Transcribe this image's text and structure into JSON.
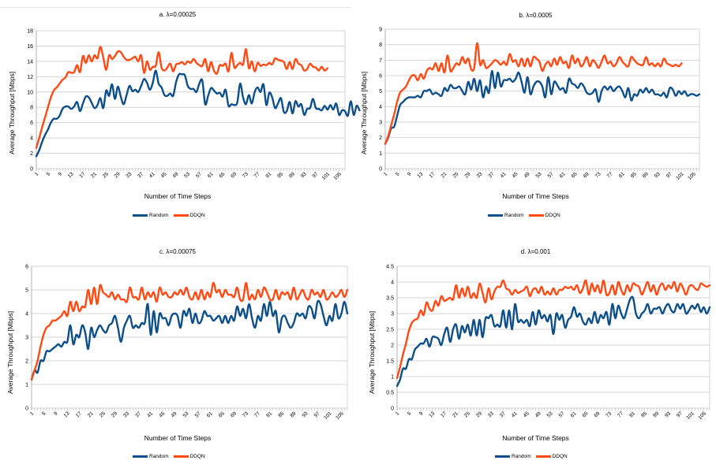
{
  "legend": {
    "items": [
      {
        "name": "Random",
        "color": "#0d4f8b"
      },
      {
        "name": "DDQN",
        "color": "#ff4a14"
      }
    ]
  },
  "chart_data": [
    {
      "type": "line",
      "title": "a. λ=0.00025",
      "xlabel": "Number of Time Steps",
      "ylabel": "Average Throughput [Mbps]",
      "ylim": [
        0,
        18
      ],
      "yticks": [
        0,
        2,
        4,
        6,
        8,
        10,
        12,
        14,
        16,
        18
      ],
      "x_range": [
        1,
        107
      ],
      "xtick_labels": [
        "1",
        "5",
        "9",
        "13",
        "17",
        "21",
        "25",
        "29",
        "33",
        "37",
        "41",
        "45",
        "49",
        "53",
        "57",
        "61",
        "65",
        "69",
        "73",
        "77",
        "81",
        "85",
        "89",
        "93",
        "97",
        "101",
        "105"
      ],
      "grid": true,
      "legend_position": "bottom",
      "series": [
        {
          "name": "Random",
          "color": "#0d4f8b",
          "values": [
            1.6,
            2.4,
            3.5,
            4.4,
            5.1,
            6.0,
            6.5,
            6.5,
            6.9,
            7.8,
            8.1,
            8.1,
            7.8,
            8.1,
            8.7,
            7.5,
            8.5,
            9.4,
            9.3,
            8.6,
            7.9,
            8.3,
            9.2,
            7.9,
            10.2,
            9.5,
            11.0,
            9.1,
            10.7,
            9.4,
            8.4,
            9.6,
            10.8,
            10.1,
            10.3,
            10.0,
            10.8,
            11.7,
            11.2,
            10.3,
            11.2,
            12.8,
            11.1,
            10.6,
            9.6,
            9.5,
            9.8,
            9.5,
            11.3,
            12.3,
            12.3,
            12.2,
            10.8,
            10.4,
            10.4,
            10.0,
            11.1,
            11.5,
            8.4,
            9.5,
            10.5,
            10.2,
            9.8,
            9.9,
            9.4,
            10.3,
            8.2,
            8.4,
            8.3,
            8.6,
            11.1,
            9.3,
            8.4,
            9.6,
            8.5,
            10.0,
            10.6,
            10.0,
            11.0,
            8.3,
            9.9,
            9.3,
            7.9,
            8.5,
            9.2,
            7.4,
            7.5,
            8.7,
            7.2,
            8.8,
            8.1,
            8.4,
            7.0,
            7.8,
            7.9,
            9.1,
            7.9,
            7.8,
            7.6,
            8.2,
            7.7,
            8.3,
            7.7,
            8.5,
            7.0,
            7.6,
            7.5,
            6.9,
            8.8,
            7.0,
            8.2,
            7.6
          ]
        },
        {
          "name": "DDQN",
          "color": "#ff4a14",
          "values": [
            2.7,
            4.0,
            5.4,
            6.7,
            8.0,
            9.3,
            10.2,
            10.6,
            11.1,
            11.6,
            11.9,
            12.6,
            12.5,
            12.6,
            13.5,
            12.6,
            14.7,
            13.8,
            14.8,
            14.0,
            14.8,
            14.4,
            15.9,
            14.5,
            12.9,
            14.8,
            14.3,
            14.7,
            15.3,
            15.2,
            14.6,
            14.2,
            14.2,
            14.4,
            14.6,
            14.0,
            14.8,
            12.5,
            14.0,
            12.9,
            13.3,
            13.4,
            15.2,
            13.2,
            12.8,
            13.2,
            13.7,
            12.7,
            13.6,
            13.7,
            13.9,
            13.6,
            14.0,
            13.8,
            14.3,
            13.8,
            13.5,
            13.4,
            14.3,
            12.7,
            13.9,
            12.8,
            12.4,
            13.5,
            13.4,
            13.7,
            12.7,
            15.1,
            13.2,
            13.5,
            13.8,
            13.6,
            15.6,
            13.1,
            14.0,
            12.7,
            13.8,
            13.4,
            13.6,
            13.5,
            13.8,
            13.6,
            14.4,
            14.2,
            14.1,
            13.9,
            13.0,
            13.9,
            13.0,
            14.3,
            13.7,
            13.5,
            12.8,
            13.0,
            13.7,
            13.3,
            13.2,
            12.8,
            13.3,
            12.8,
            13.1
          ]
        }
      ]
    },
    {
      "type": "line",
      "title": "b. λ=0.0005",
      "xlabel": "Number of Time Steps",
      "ylabel": "Average Throughput [Mbps]",
      "ylim": [
        0,
        9
      ],
      "yticks": [
        0,
        1,
        2,
        3,
        4,
        5,
        6,
        7,
        8,
        9
      ],
      "x_range": [
        1,
        107
      ],
      "xtick_labels": [
        "1",
        "5",
        "9",
        "13",
        "17",
        "21",
        "25",
        "29",
        "33",
        "37",
        "41",
        "45",
        "49",
        "53",
        "57",
        "61",
        "65",
        "69",
        "73",
        "77",
        "81",
        "85",
        "89",
        "93",
        "97",
        "101",
        "105"
      ],
      "grid": true,
      "legend_position": "bottom",
      "series": [
        {
          "name": "Random",
          "color": "#0d4f8b",
          "values": [
            1.6,
            2.0,
            2.6,
            2.7,
            3.4,
            4.1,
            4.3,
            4.5,
            4.6,
            4.6,
            4.6,
            4.7,
            4.6,
            5.0,
            5.0,
            5.1,
            4.8,
            4.9,
            4.8,
            4.7,
            5.2,
            5.0,
            5.4,
            5.2,
            5.2,
            5.3,
            5.0,
            4.8,
            5.6,
            5.1,
            5.8,
            5.0,
            5.7,
            4.6,
            5.3,
            4.9,
            6.3,
            5.2,
            6.2,
            5.3,
            5.7,
            5.7,
            5.8,
            5.6,
            5.8,
            6.2,
            5.6,
            4.9,
            5.9,
            4.8,
            5.3,
            5.6,
            5.6,
            5.3,
            4.6,
            5.9,
            4.8,
            5.6,
            5.4,
            5.1,
            5.2,
            4.9,
            5.8,
            5.5,
            5.4,
            5.2,
            5.5,
            5.3,
            4.9,
            4.8,
            4.9,
            5.1,
            4.3,
            5.0,
            5.3,
            5.1,
            5.3,
            5.0,
            5.2,
            5.3,
            5.0,
            4.6,
            5.2,
            4.4,
            4.8,
            4.7,
            5.1,
            4.9,
            5.2,
            4.9,
            5.1,
            4.8,
            4.8,
            4.7,
            4.9,
            4.6,
            5.2,
            5.1,
            4.7,
            5.0,
            4.8,
            5.0,
            4.7,
            4.8,
            4.8,
            4.7,
            4.8
          ]
        },
        {
          "name": "DDQN",
          "color": "#ff4a14",
          "values": [
            1.6,
            2.1,
            2.8,
            3.5,
            4.3,
            4.9,
            5.1,
            5.3,
            5.7,
            6.0,
            6.0,
            5.7,
            6.1,
            5.8,
            6.3,
            6.5,
            6.4,
            6.8,
            6.3,
            6.8,
            6.2,
            7.3,
            6.3,
            6.5,
            6.8,
            6.7,
            7.2,
            6.8,
            7.1,
            6.4,
            6.5,
            8.1,
            6.7,
            7.0,
            6.5,
            6.6,
            6.8,
            7.0,
            6.9,
            6.7,
            6.9,
            6.7,
            7.4,
            6.9,
            7.0,
            6.6,
            7.1,
            6.6,
            7.1,
            6.6,
            7.2,
            7.1,
            6.9,
            6.3,
            6.7,
            6.9,
            6.6,
            7.1,
            6.7,
            7.2,
            6.8,
            6.9,
            6.5,
            7.3,
            6.8,
            7.1,
            6.6,
            6.8,
            7.2,
            6.6,
            7.0,
            6.8,
            6.5,
            6.9,
            7.3,
            6.8,
            6.9,
            6.6,
            6.8,
            7.2,
            6.9,
            6.7,
            6.6,
            7.2,
            7.0,
            6.8,
            6.7,
            6.7,
            7.2,
            6.7,
            6.8,
            6.6,
            6.8,
            6.6,
            7.1,
            6.8,
            6.7,
            6.6,
            6.7,
            6.6,
            6.8
          ]
        }
      ]
    },
    {
      "type": "line",
      "title": "c. λ=0.00075",
      "xlabel": "Number of Time Steps",
      "ylabel": "Average Throughput [Mbps]",
      "ylim": [
        0,
        6
      ],
      "yticks": [
        0,
        1,
        2,
        3,
        4,
        5,
        6
      ],
      "x_range": [
        1,
        107
      ],
      "xtick_labels": [
        "1",
        "5",
        "9",
        "13",
        "17",
        "21",
        "25",
        "29",
        "33",
        "37",
        "41",
        "45",
        "49",
        "53",
        "57",
        "61",
        "65",
        "69",
        "73",
        "77",
        "81",
        "85",
        "89",
        "93",
        "97",
        "101",
        "105"
      ],
      "grid": true,
      "legend_position": "bottom",
      "series": [
        {
          "name": "Random",
          "color": "#0d4f8b",
          "values": [
            1.2,
            1.6,
            1.5,
            2.0,
            2.0,
            2.4,
            2.4,
            2.5,
            2.6,
            2.7,
            2.6,
            2.8,
            2.8,
            3.5,
            2.7,
            3.1,
            3.0,
            3.5,
            3.2,
            2.5,
            3.4,
            3.0,
            3.3,
            3.5,
            3.3,
            3.2,
            3.5,
            3.6,
            3.9,
            3.4,
            2.8,
            3.4,
            3.7,
            3.9,
            3.4,
            3.5,
            3.4,
            3.6,
            3.6,
            4.4,
            3.1,
            4.1,
            3.2,
            4.0,
            3.8,
            3.8,
            3.5,
            3.9,
            4.0,
            3.9,
            3.4,
            4.1,
            3.9,
            4.2,
            3.6,
            4.0,
            3.6,
            3.7,
            4.1,
            3.9,
            3.9,
            3.7,
            3.8,
            3.9,
            3.6,
            3.9,
            3.6,
            3.9,
            3.7,
            4.3,
            3.9,
            4.2,
            3.8,
            4.4,
            3.8,
            3.4,
            3.9,
            3.7,
            4.4,
            3.9,
            4.5,
            3.9,
            4.1,
            3.2,
            3.8,
            3.9,
            3.6,
            3.4,
            3.6,
            4.0,
            3.9,
            4.0,
            3.8,
            4.3,
            4.2,
            3.8,
            4.5,
            4.4,
            3.9,
            3.5,
            3.9,
            3.7,
            4.4,
            3.8,
            4.0,
            4.5,
            4.0
          ]
        },
        {
          "name": "DDQN",
          "color": "#ff4a14",
          "values": [
            1.2,
            1.6,
            2.0,
            2.6,
            3.1,
            3.4,
            3.5,
            3.7,
            3.7,
            3.8,
            3.9,
            4.1,
            3.9,
            4.5,
            4.1,
            4.5,
            4.1,
            4.3,
            4.3,
            5.0,
            4.4,
            5.1,
            4.4,
            5.2,
            4.9,
            4.8,
            4.7,
            4.9,
            4.6,
            4.8,
            4.6,
            4.6,
            4.5,
            5.1,
            4.7,
            4.7,
            4.6,
            5.1,
            4.6,
            4.9,
            4.7,
            4.9,
            4.5,
            5.1,
            4.8,
            4.9,
            4.7,
            4.7,
            4.9,
            4.8,
            5.0,
            4.8,
            5.1,
            4.7,
            4.6,
            4.9,
            4.6,
            5.0,
            4.6,
            4.9,
            4.7,
            5.3,
            4.9,
            5.0,
            4.7,
            5.0,
            4.8,
            4.8,
            4.7,
            5.1,
            4.6,
            4.6,
            5.3,
            4.6,
            4.8,
            4.6,
            5.0,
            4.7,
            5.1,
            4.9,
            4.6,
            4.6,
            5.0,
            4.6,
            4.9,
            4.8,
            4.9,
            4.6,
            5.1,
            4.6,
            4.8,
            5.0,
            4.7,
            4.6,
            5.0,
            4.8,
            4.9,
            4.7,
            5.0,
            4.6,
            4.7,
            4.9,
            4.7,
            4.8,
            5.0,
            4.7,
            5.0
          ]
        }
      ]
    },
    {
      "type": "line",
      "title": "d. λ=0.001",
      "xlabel": "Number of Time Steps",
      "ylabel": "Average Throughput [Mbps]",
      "ylim": [
        0,
        4.5
      ],
      "yticks": [
        0,
        0.5,
        1,
        1.5,
        2,
        2.5,
        3,
        3.5,
        4,
        4.5
      ],
      "x_range": [
        1,
        107
      ],
      "xtick_labels": [
        "1",
        "5",
        "9",
        "13",
        "17",
        "21",
        "25",
        "29",
        "33",
        "37",
        "41",
        "45",
        "49",
        "53",
        "57",
        "61",
        "65",
        "69",
        "73",
        "77",
        "81",
        "85",
        "89",
        "93",
        "97",
        "101",
        "105"
      ],
      "grid": true,
      "legend_position": "bottom",
      "series": [
        {
          "name": "Random",
          "color": "#0d4f8b",
          "values": [
            0.7,
            0.9,
            1.25,
            1.25,
            1.55,
            1.55,
            1.85,
            1.95,
            2.05,
            2.05,
            2.2,
            1.95,
            2.25,
            2.25,
            2.2,
            2.0,
            2.35,
            2.55,
            2.1,
            2.5,
            2.65,
            2.2,
            2.6,
            2.4,
            2.65,
            2.3,
            2.8,
            2.3,
            2.8,
            2.25,
            2.85,
            2.85,
            2.95,
            2.6,
            2.65,
            2.6,
            3.1,
            2.55,
            3.1,
            2.5,
            3.3,
            2.75,
            2.8,
            2.7,
            2.8,
            2.6,
            3.05,
            2.65,
            3.1,
            2.85,
            2.95,
            2.75,
            2.95,
            2.35,
            3.0,
            2.8,
            2.95,
            2.55,
            2.8,
            2.9,
            3.2,
            2.9,
            3.0,
            2.75,
            2.65,
            2.85,
            2.7,
            3.05,
            2.7,
            2.95,
            2.85,
            3.05,
            2.65,
            3.3,
            2.85,
            3.25,
            3.0,
            2.85,
            3.15,
            3.45,
            3.5,
            3.0,
            2.85,
            3.0,
            3.1,
            3.3,
            3.0,
            3.15,
            3.15,
            3.2,
            3.0,
            3.2,
            3.3,
            3.1,
            3.05,
            3.3,
            3.15,
            3.3,
            3.0,
            3.1,
            3.25,
            3.15,
            3.3,
            3.05,
            3.2,
            3.0,
            3.2
          ]
        },
        {
          "name": "DDQN",
          "color": "#ff4a14",
          "values": [
            0.95,
            1.3,
            1.7,
            2.05,
            2.45,
            2.7,
            2.8,
            2.85,
            3.1,
            2.95,
            3.35,
            3.15,
            3.1,
            3.4,
            3.25,
            3.55,
            3.4,
            3.45,
            3.5,
            3.45,
            3.9,
            3.5,
            3.8,
            3.55,
            3.85,
            3.5,
            3.65,
            3.5,
            3.95,
            3.65,
            3.35,
            3.8,
            3.45,
            3.7,
            3.85,
            3.85,
            4.05,
            3.8,
            3.75,
            3.6,
            3.75,
            3.65,
            3.7,
            3.75,
            3.85,
            3.55,
            3.75,
            3.8,
            3.65,
            3.85,
            3.6,
            3.7,
            3.6,
            3.8,
            3.6,
            3.75,
            3.75,
            3.85,
            3.8,
            3.85,
            3.75,
            3.9,
            3.65,
            3.8,
            4.05,
            3.6,
            3.95,
            3.7,
            3.9,
            3.65,
            4.05,
            3.6,
            3.65,
            3.9,
            3.6,
            4.0,
            3.75,
            3.6,
            3.9,
            3.7,
            3.95,
            3.9,
            3.85,
            3.6,
            3.8,
            4.0,
            3.7,
            3.9,
            3.6,
            3.85,
            3.95,
            3.75,
            3.9,
            3.8,
            4.0,
            3.7,
            3.95,
            3.8,
            3.6,
            3.85,
            3.9,
            3.8,
            3.75,
            3.95,
            3.9,
            3.85,
            3.9
          ]
        }
      ]
    }
  ]
}
